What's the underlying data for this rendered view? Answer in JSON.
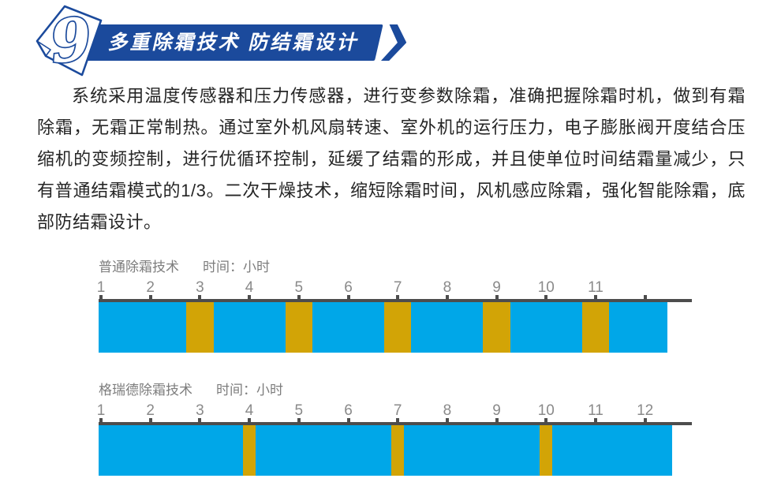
{
  "header": {
    "number": "9",
    "title": "多重除霜技术 防结霜设计"
  },
  "paragraph": {
    "text": "系统采用温度传感器和压力传感器，进行变参数除霜，准确把握除霜时机，做到有霜除霜，无霜正常制热。通过室外机风扇转速、室外机的运行压力，电子膨胀阀开度结合压缩机的变频控制，进行优循环控制，延缓了结霜的形成，并且使单位时间结霜量减少，只有普通结霜模式的1/3。二次干燥技术，缩短除霜时间，风机感应除霜，强化智能除霜，底部防结霜设计。"
  },
  "colors": {
    "banner_blue": "#1b4a9c",
    "bar_blue": "#00a7e8",
    "defrost_gold": "#d2a406",
    "axis_gray": "#4d4d4d",
    "label_gray": "#8a8a8a"
  },
  "chart_data": [
    {
      "type": "timeline-bar",
      "title": "普通除霜技术",
      "axis_label": "时间：小时",
      "unit": "hours",
      "tick_labels": [
        "1",
        "2",
        "3",
        "4",
        "5",
        "6",
        "7",
        "8",
        "9",
        "10",
        "11"
      ],
      "tick_marks": [
        1,
        2,
        3,
        4,
        5,
        6,
        7,
        8,
        9,
        10,
        11,
        12
      ],
      "axis_range": [
        1,
        12.95
      ],
      "bar_start_hour": 0.95,
      "bar_end_hour": 12.45,
      "defrost_event_hours": [
        3,
        5,
        7,
        9,
        11
      ],
      "defrost_duration_hours": 0.55
    },
    {
      "type": "timeline-bar",
      "title": "格瑞德除霜技术",
      "axis_label": "时间：小时",
      "unit": "hours",
      "tick_labels": [
        "1",
        "2",
        "3",
        "4",
        "5",
        "6",
        "7",
        "8",
        "9",
        "10",
        "11",
        "12"
      ],
      "tick_marks": [
        1,
        2,
        3,
        4,
        5,
        6,
        7,
        8,
        9,
        10,
        11,
        12
      ],
      "axis_range": [
        1,
        12.95
      ],
      "bar_start_hour": 0.95,
      "bar_end_hour": 12.55,
      "defrost_event_hours": [
        4,
        7,
        10
      ],
      "defrost_duration_hours": 0.26
    }
  ]
}
